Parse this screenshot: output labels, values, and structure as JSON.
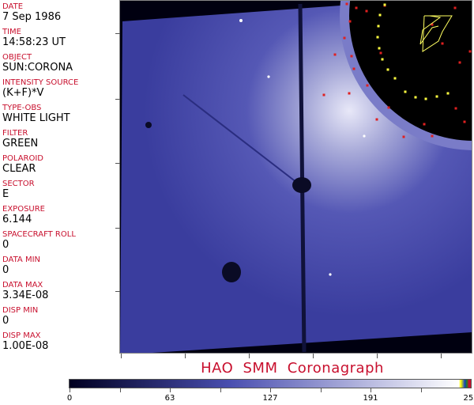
{
  "fields": [
    {
      "label": "DATE",
      "value": "7 Sep 1986"
    },
    {
      "label": "TIME",
      "value": "14:58:23 UT"
    },
    {
      "label": "OBJECT",
      "value": "SUN:CORONA"
    },
    {
      "label": "INTENSITY SOURCE",
      "value": "(K+F)*V"
    },
    {
      "label": "TYPE-OBS",
      "value": "WHITE LIGHT"
    },
    {
      "label": "FILTER",
      "value": "GREEN"
    },
    {
      "label": "POLAROID",
      "value": "CLEAR"
    },
    {
      "label": "SECTOR",
      "value": "E"
    },
    {
      "label": "EXPOSURE",
      "value": "6.144"
    },
    {
      "label": "SPACECRAFT ROLL",
      "value": "0"
    },
    {
      "label": "DATA MIN",
      "value": "0"
    },
    {
      "label": "DATA MAX",
      "value": "3.34E-08"
    },
    {
      "label": "DISP MIN",
      "value": "0"
    },
    {
      "label": "DISP MAX",
      "value": "1.00E-08"
    }
  ],
  "title": "HAO  SMM Coronagraph",
  "colorbar": {
    "labels": [
      "0",
      "63",
      "127",
      "191",
      "255"
    ],
    "colors": {
      "low": "#000020",
      "mid": "#4a4fb0",
      "high": "#ffffff",
      "accent": "#c8102e"
    }
  }
}
